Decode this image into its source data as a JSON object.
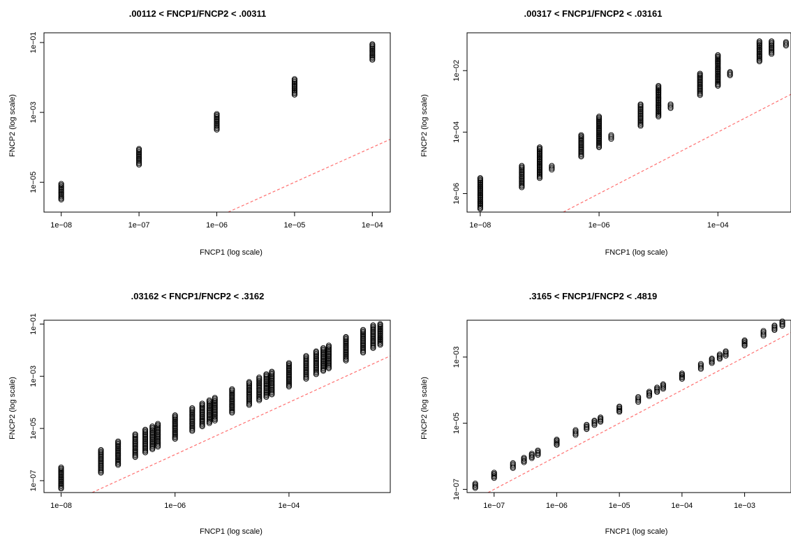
{
  "chart_data": [
    {
      "type": "scatter",
      "title": ".00112 < FNCP1/FNCP2 < .00311",
      "xlabel": "FNCP1 (log scale)",
      "ylabel": "FNCP2 (log scale)",
      "xscale": "log",
      "yscale": "log",
      "xlim": [
        6e-09,
        0.00017
      ],
      "ylim": [
        1.4e-06,
        0.19
      ],
      "xticks": [
        1e-08,
        1e-07,
        1e-06,
        1e-05,
        0.0001
      ],
      "xtick_labels": [
        "1e−08",
        "1e−07",
        "1e−06",
        "1e−05",
        "1e−04"
      ],
      "yticks": [
        1e-05,
        0.001,
        0.1
      ],
      "ytick_labels": [
        "1e−05",
        "1e−03",
        "1e−01"
      ],
      "reference_line": "y = x",
      "groups": [
        {
          "x": 1e-08,
          "y_range": [
            3.2e-06,
            9e-06
          ]
        },
        {
          "x": 1e-07,
          "y_range": [
            3.2e-05,
            9e-05
          ]
        },
        {
          "x": 1e-06,
          "y_range": [
            0.00032,
            0.0009
          ]
        },
        {
          "x": 1e-05,
          "y_range": [
            0.0032,
            0.009
          ]
        },
        {
          "x": 0.0001,
          "y_range": [
            0.032,
            0.09
          ]
        }
      ]
    },
    {
      "type": "scatter",
      "title": ".00317 < FNCP1/FNCP2 < .03161",
      "xlabel": "FNCP1 (log scale)",
      "ylabel": "FNCP2 (log scale)",
      "xscale": "log",
      "yscale": "log",
      "xlim": [
        6e-09,
        0.0017
      ],
      "ylim": [
        2.5e-07,
        0.17
      ],
      "xticks": [
        1e-08,
        1e-06,
        0.0001
      ],
      "xtick_labels": [
        "1e−08",
        "1e−06",
        "1e−04"
      ],
      "yticks": [
        1e-06,
        0.0001,
        0.01
      ],
      "ytick_labels": [
        "1e−06",
        "1e−04",
        "1e−02"
      ],
      "reference_line": "y = x",
      "groups": [
        {
          "x": 1e-08,
          "y_range": [
            3.2e-07,
            3.2e-06
          ]
        },
        {
          "x": 5e-08,
          "y_range": [
            1.6e-06,
            8e-06
          ]
        },
        {
          "x": 1e-07,
          "y_range": [
            3.2e-06,
            3.2e-05
          ]
        },
        {
          "x": 1.6e-07,
          "y_range": [
            6e-06,
            8e-06
          ]
        },
        {
          "x": 5e-07,
          "y_range": [
            1.6e-05,
            8e-05
          ]
        },
        {
          "x": 1e-06,
          "y_range": [
            3.2e-05,
            0.00032
          ]
        },
        {
          "x": 1.6e-06,
          "y_range": [
            6e-05,
            8e-05
          ]
        },
        {
          "x": 5e-06,
          "y_range": [
            0.00016,
            0.0008
          ]
        },
        {
          "x": 1e-05,
          "y_range": [
            0.00032,
            0.0032
          ]
        },
        {
          "x": 1.6e-05,
          "y_range": [
            0.0006,
            0.0008
          ]
        },
        {
          "x": 5e-05,
          "y_range": [
            0.0016,
            0.008
          ]
        },
        {
          "x": 0.0001,
          "y_range": [
            0.0032,
            0.032
          ]
        },
        {
          "x": 0.00016,
          "y_range": [
            0.007,
            0.009
          ]
        },
        {
          "x": 0.0005,
          "y_range": [
            0.02,
            0.09
          ]
        },
        {
          "x": 0.0008,
          "y_range": [
            0.035,
            0.09
          ]
        },
        {
          "x": 0.0014,
          "y_range": [
            0.065,
            0.085
          ]
        }
      ]
    },
    {
      "type": "scatter",
      "title": ".03162 < FNCP1/FNCP2 < .3162",
      "xlabel": "FNCP1 (log scale)",
      "ylabel": "FNCP2 (log scale)",
      "xscale": "log",
      "yscale": "log",
      "xlim": [
        5e-09,
        0.006
      ],
      "ylim": [
        3.5e-08,
        0.14
      ],
      "xticks": [
        1e-08,
        1e-06,
        0.0001
      ],
      "xtick_labels": [
        "1e−08",
        "1e−06",
        "1e−04"
      ],
      "yticks": [
        1e-07,
        1e-05,
        0.001,
        0.1
      ],
      "ytick_labels": [
        "1e−07",
        "1e−05",
        "1e−03",
        "1e−01"
      ],
      "reference_line": "y = x",
      "groups": [
        {
          "x": 1e-08,
          "y_range": [
            5e-08,
            3.2e-07
          ]
        },
        {
          "x": 5e-08,
          "y_range": [
            2e-07,
            1.5e-06
          ]
        },
        {
          "x": 1e-07,
          "y_range": [
            4e-07,
            3.2e-06
          ]
        },
        {
          "x": 2e-07,
          "y_range": [
            8e-07,
            6e-06
          ]
        },
        {
          "x": 3e-07,
          "y_range": [
            1.2e-06,
            9e-06
          ]
        },
        {
          "x": 4e-07,
          "y_range": [
            1.6e-06,
            1.2e-05
          ]
        },
        {
          "x": 5e-07,
          "y_range": [
            2e-06,
            1.5e-05
          ]
        },
        {
          "x": 1e-06,
          "y_range": [
            4e-06,
            3.2e-05
          ]
        },
        {
          "x": 2e-06,
          "y_range": [
            8e-06,
            6e-05
          ]
        },
        {
          "x": 3e-06,
          "y_range": [
            1.2e-05,
            9e-05
          ]
        },
        {
          "x": 4e-06,
          "y_range": [
            1.6e-05,
            0.00012
          ]
        },
        {
          "x": 5e-06,
          "y_range": [
            2e-05,
            0.00015
          ]
        },
        {
          "x": 1e-05,
          "y_range": [
            4e-05,
            0.00032
          ]
        },
        {
          "x": 2e-05,
          "y_range": [
            8e-05,
            0.0006
          ]
        },
        {
          "x": 3e-05,
          "y_range": [
            0.00012,
            0.0009
          ]
        },
        {
          "x": 4e-05,
          "y_range": [
            0.00016,
            0.0012
          ]
        },
        {
          "x": 5e-05,
          "y_range": [
            0.0002,
            0.0015
          ]
        },
        {
          "x": 0.0001,
          "y_range": [
            0.0004,
            0.0032
          ]
        },
        {
          "x": 0.0002,
          "y_range": [
            0.0008,
            0.006
          ]
        },
        {
          "x": 0.0003,
          "y_range": [
            0.0012,
            0.009
          ]
        },
        {
          "x": 0.0004,
          "y_range": [
            0.0016,
            0.012
          ]
        },
        {
          "x": 0.0005,
          "y_range": [
            0.002,
            0.015
          ]
        },
        {
          "x": 0.001,
          "y_range": [
            0.004,
            0.032
          ]
        },
        {
          "x": 0.002,
          "y_range": [
            0.008,
            0.06
          ]
        },
        {
          "x": 0.003,
          "y_range": [
            0.012,
            0.09
          ]
        },
        {
          "x": 0.004,
          "y_range": [
            0.016,
            0.1
          ]
        }
      ]
    },
    {
      "type": "scatter",
      "title": ".3165 < FNCP1/FNCP2 < .4819",
      "xlabel": "FNCP1 (log scale)",
      "ylabel": "FNCP2 (log scale)",
      "xscale": "log",
      "yscale": "log",
      "xlim": [
        3.7e-08,
        0.0055
      ],
      "ylim": [
        8e-08,
        0.013
      ],
      "xticks": [
        1e-07,
        1e-06,
        1e-05,
        0.0001,
        0.001
      ],
      "xtick_labels": [
        "1e−07",
        "1e−06",
        "1e−05",
        "1e−04",
        "1e−03"
      ],
      "yticks": [
        1e-07,
        1e-05,
        0.001
      ],
      "ytick_labels": [
        "1e−07",
        "1e−05",
        "1e−03"
      ],
      "reference_line": "y = x",
      "groups": [
        {
          "x": 5e-08,
          "y_range": [
            1.1e-07,
            1.5e-07
          ]
        },
        {
          "x": 1e-07,
          "y_range": [
            2.2e-07,
            3.2e-07
          ]
        },
        {
          "x": 2e-07,
          "y_range": [
            4.4e-07,
            6.2e-07
          ]
        },
        {
          "x": 3e-07,
          "y_range": [
            6.6e-07,
            9e-07
          ]
        },
        {
          "x": 4e-07,
          "y_range": [
            8.8e-07,
            1.2e-06
          ]
        },
        {
          "x": 5e-07,
          "y_range": [
            1.1e-06,
            1.5e-06
          ]
        },
        {
          "x": 1e-06,
          "y_range": [
            2.2e-06,
            3.2e-06
          ]
        },
        {
          "x": 2e-06,
          "y_range": [
            4.4e-06,
            6.2e-06
          ]
        },
        {
          "x": 3e-06,
          "y_range": [
            6.6e-06,
            9e-06
          ]
        },
        {
          "x": 4e-06,
          "y_range": [
            8.8e-06,
            1.2e-05
          ]
        },
        {
          "x": 5e-06,
          "y_range": [
            1.1e-05,
            1.5e-05
          ]
        },
        {
          "x": 1e-05,
          "y_range": [
            2.2e-05,
            3.2e-05
          ]
        },
        {
          "x": 2e-05,
          "y_range": [
            4.4e-05,
            6.2e-05
          ]
        },
        {
          "x": 3e-05,
          "y_range": [
            6.6e-05,
            9e-05
          ]
        },
        {
          "x": 4e-05,
          "y_range": [
            8.8e-05,
            0.00012
          ]
        },
        {
          "x": 5e-05,
          "y_range": [
            0.00011,
            0.00015
          ]
        },
        {
          "x": 0.0001,
          "y_range": [
            0.00022,
            0.00032
          ]
        },
        {
          "x": 0.0002,
          "y_range": [
            0.00044,
            0.00062
          ]
        },
        {
          "x": 0.0003,
          "y_range": [
            0.00066,
            0.0009
          ]
        },
        {
          "x": 0.0004,
          "y_range": [
            0.00088,
            0.0012
          ]
        },
        {
          "x": 0.0005,
          "y_range": [
            0.0011,
            0.0015
          ]
        },
        {
          "x": 0.001,
          "y_range": [
            0.0022,
            0.0032
          ]
        },
        {
          "x": 0.002,
          "y_range": [
            0.0044,
            0.0062
          ]
        },
        {
          "x": 0.003,
          "y_range": [
            0.0066,
            0.009
          ]
        },
        {
          "x": 0.004,
          "y_range": [
            0.0088,
            0.012
          ]
        }
      ]
    }
  ],
  "colors": {
    "points": "#000000",
    "reference_line": "#ff6f6f",
    "frame": "#000000",
    "background": "#ffffff"
  }
}
